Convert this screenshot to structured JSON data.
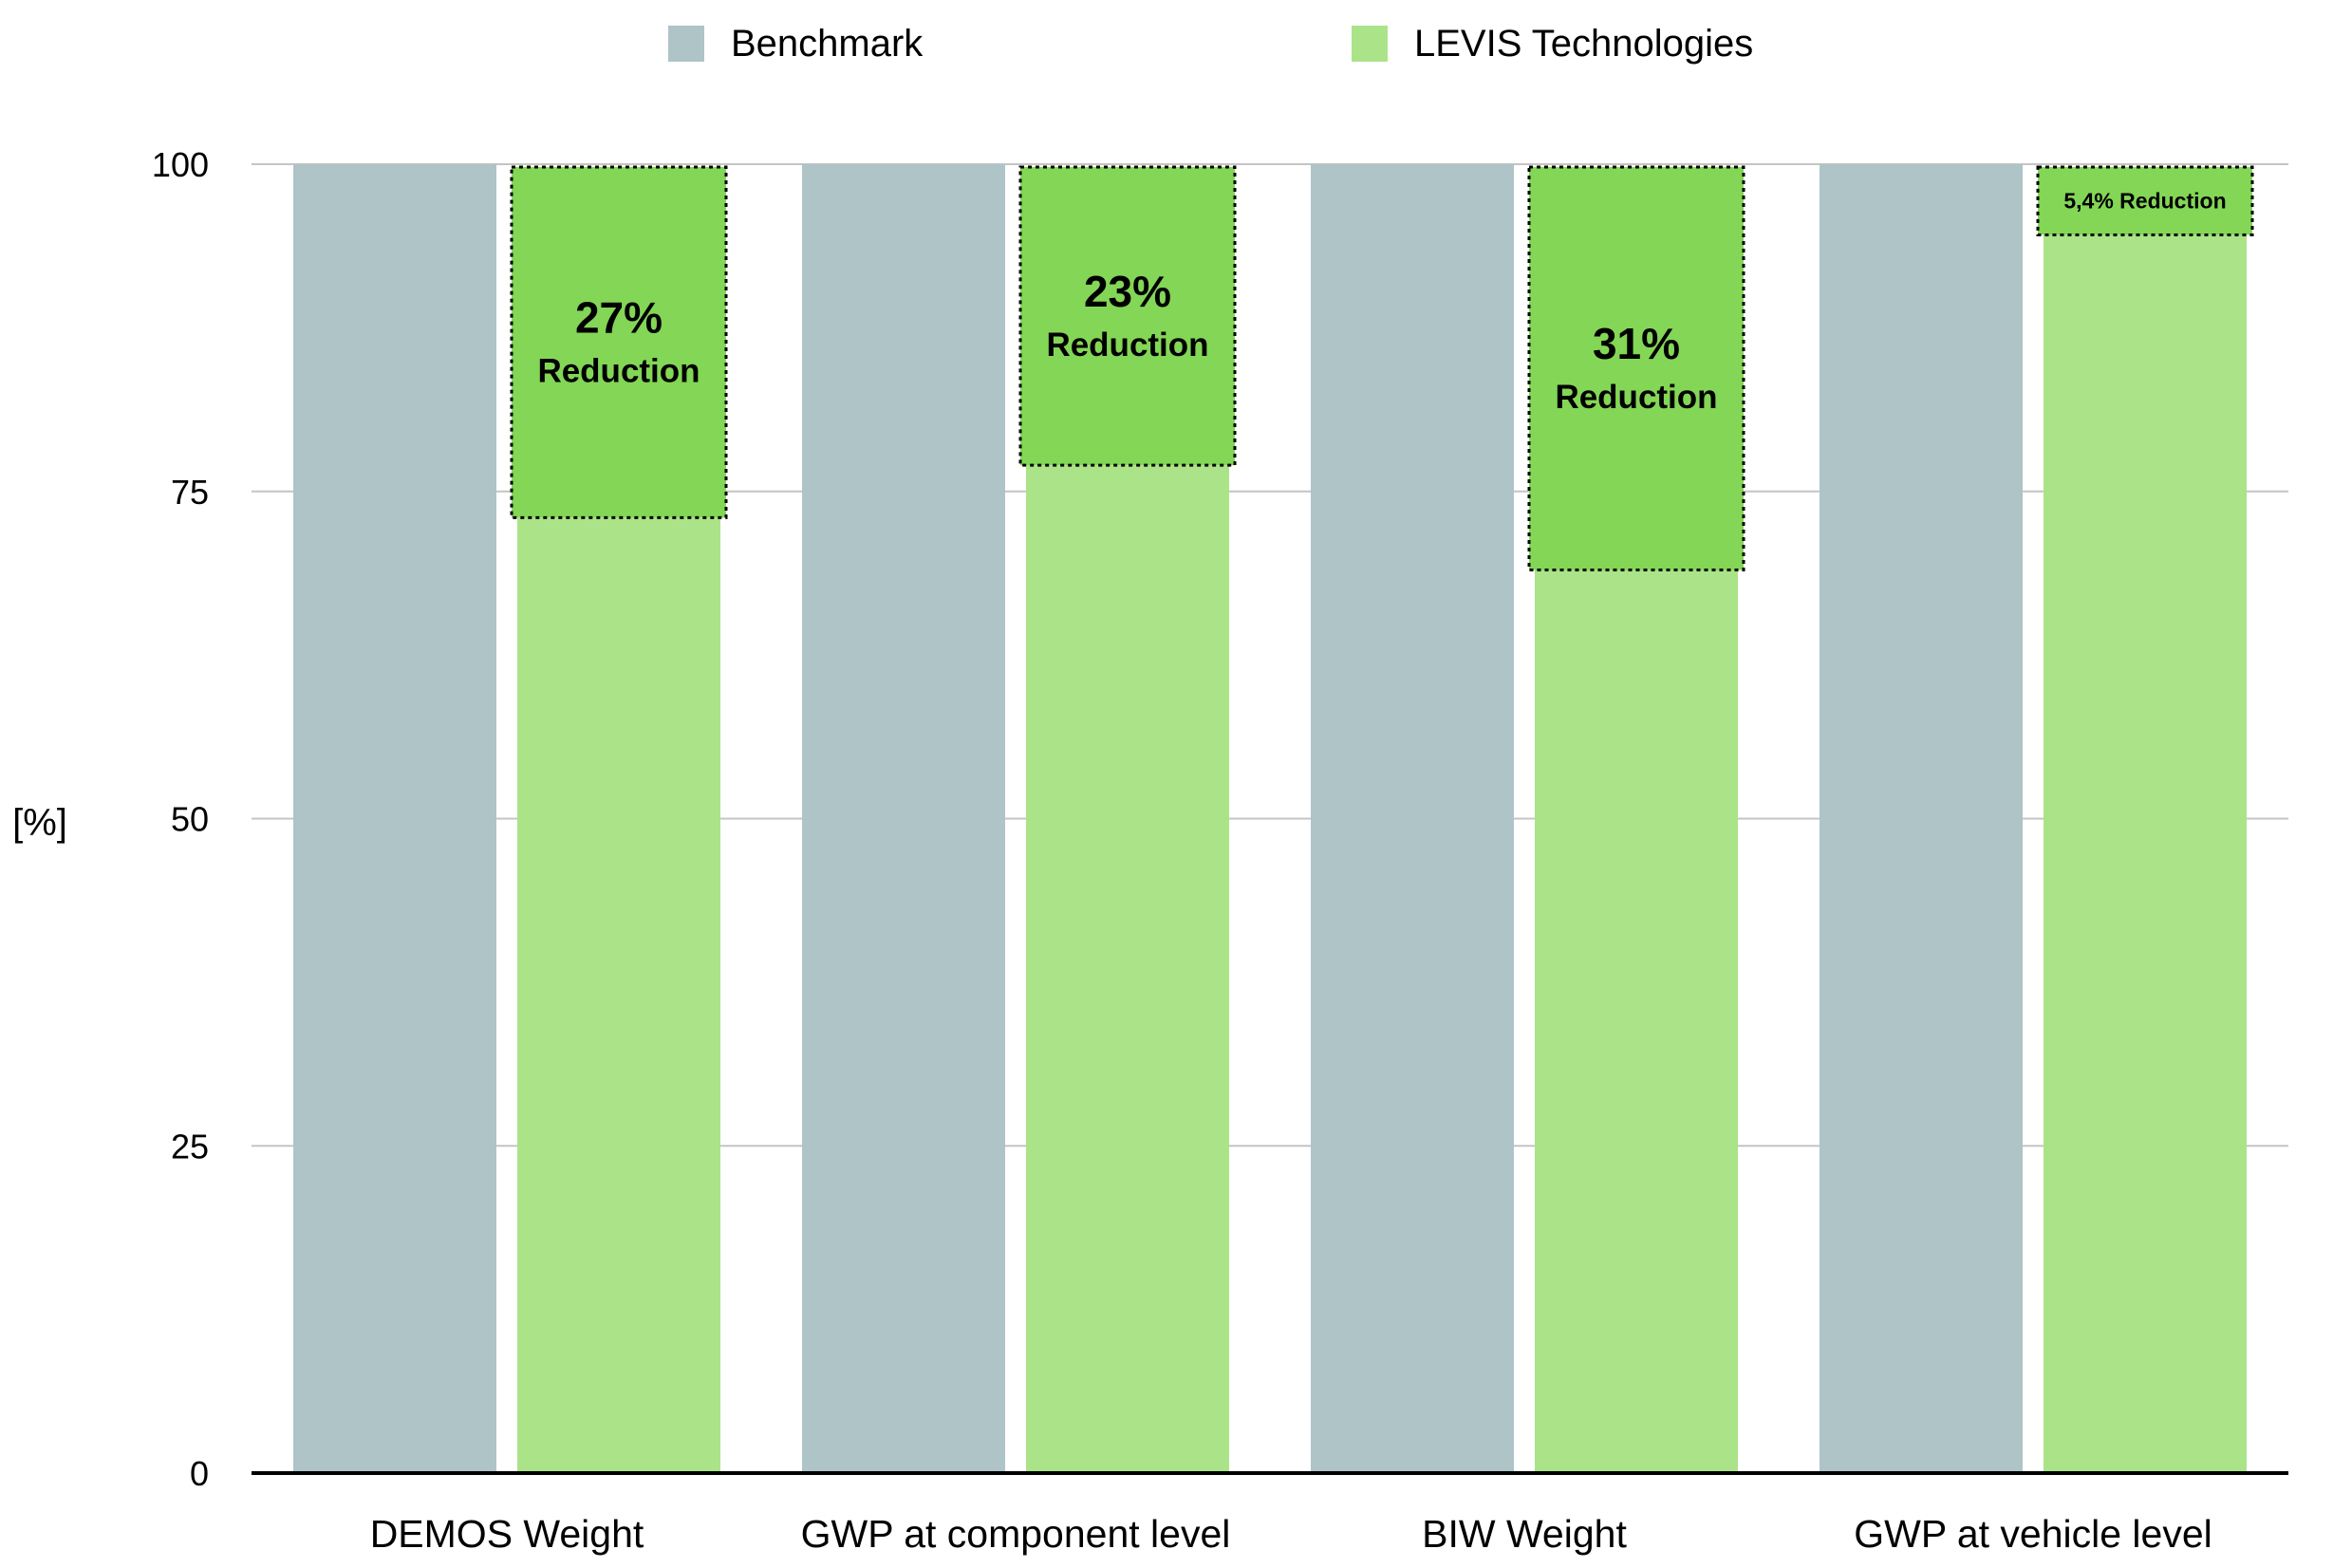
{
  "chart_data": {
    "type": "bar",
    "categories": [
      "DEMOS Weight",
      "GWP at component level",
      "BIW Weight",
      "GWP at vehicle level"
    ],
    "series": [
      {
        "name": "Benchmark",
        "values": [
          100,
          100,
          100,
          100
        ],
        "color": "#aec4c7"
      },
      {
        "name": "LEVIS Technologies",
        "values": [
          73,
          77,
          69,
          94.6
        ],
        "color": "#abe388"
      }
    ],
    "annotations": [
      {
        "pct": "27%",
        "text": "Reduction"
      },
      {
        "pct": "23%",
        "text": "Reduction"
      },
      {
        "pct": "31%",
        "text": "Reduction"
      },
      {
        "pct": "",
        "text": "5,4% Reduction"
      }
    ],
    "annotation_color": "#83d656",
    "ylabel": "[%]",
    "ylim": [
      0,
      100
    ],
    "yticks": [
      0,
      25,
      50,
      75,
      100
    ],
    "grid": true,
    "legend": "top"
  }
}
